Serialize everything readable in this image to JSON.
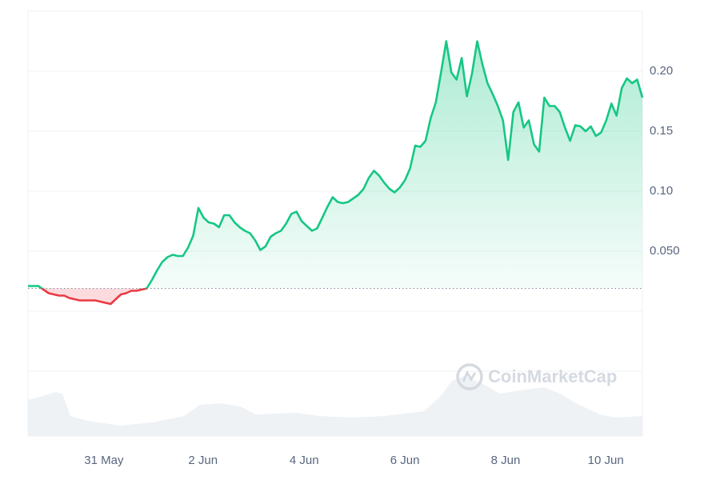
{
  "chart_data": {
    "type": "line",
    "watermark": "CoinMarketCap",
    "x": [
      0,
      1,
      2,
      3,
      4,
      5,
      6,
      7,
      8,
      9,
      10,
      11,
      12,
      13,
      14,
      15,
      16,
      17,
      18,
      19,
      20,
      21,
      22,
      23,
      24,
      25,
      26,
      27,
      28,
      29,
      30,
      31,
      32,
      33,
      34,
      35,
      36,
      37,
      38,
      39,
      40,
      41,
      42,
      43,
      44,
      45,
      46,
      47,
      48,
      49,
      50,
      51,
      52,
      53,
      54,
      55,
      56,
      57,
      58,
      59,
      60,
      61,
      62,
      63,
      64,
      65,
      66,
      67,
      68,
      69,
      70,
      71,
      72,
      73,
      74,
      75,
      76,
      77,
      78,
      79,
      80,
      81,
      82,
      83,
      84,
      85,
      86,
      87,
      88,
      89,
      90,
      91,
      92,
      93,
      94,
      95,
      96,
      97,
      98,
      99,
      100,
      101,
      102,
      103,
      104,
      105,
      106,
      107,
      108,
      109,
      110,
      111,
      112,
      113,
      114,
      115,
      116,
      117,
      118,
      119
    ],
    "series": [
      {
        "color": "#16c784",
        "below_color": "#ea3943",
        "values": [
          0.021,
          0.021,
          0.021,
          0.018,
          0.015,
          0.014,
          0.013,
          0.013,
          0.011,
          0.01,
          0.009,
          0.009,
          0.009,
          0.009,
          0.008,
          0.007,
          0.006,
          0.01,
          0.014,
          0.015,
          0.017,
          0.017,
          0.018,
          0.019,
          0.026,
          0.034,
          0.041,
          0.045,
          0.047,
          0.046,
          0.046,
          0.053,
          0.063,
          0.086,
          0.078,
          0.074,
          0.073,
          0.07,
          0.08,
          0.08,
          0.074,
          0.07,
          0.067,
          0.065,
          0.059,
          0.051,
          0.054,
          0.062,
          0.065,
          0.067,
          0.073,
          0.081,
          0.083,
          0.075,
          0.071,
          0.067,
          0.069,
          0.078,
          0.087,
          0.095,
          0.091,
          0.09,
          0.091,
          0.094,
          0.097,
          0.102,
          0.111,
          0.117,
          0.113,
          0.107,
          0.102,
          0.099,
          0.103,
          0.109,
          0.119,
          0.138,
          0.137,
          0.142,
          0.161,
          0.174,
          0.199,
          0.225,
          0.199,
          0.193,
          0.211,
          0.179,
          0.198,
          0.225,
          0.206,
          0.19,
          0.181,
          0.171,
          0.159,
          0.126,
          0.166,
          0.174,
          0.153,
          0.159,
          0.139,
          0.133,
          0.178,
          0.171,
          0.171,
          0.166,
          0.153,
          0.142,
          0.155,
          0.154,
          0.15,
          0.154,
          0.146,
          0.149,
          0.159,
          0.173,
          0.163,
          0.186,
          0.194,
          0.19,
          0.193,
          0.178
        ]
      }
    ],
    "baseline": 0.019,
    "xlim": [
      0,
      119
    ],
    "xticks": [
      {
        "value": 14.7,
        "label": "31 May"
      },
      {
        "value": 33.9,
        "label": "2 Jun"
      },
      {
        "value": 53.5,
        "label": "4 Jun"
      },
      {
        "value": 73.0,
        "label": "6 Jun"
      },
      {
        "value": 92.5,
        "label": "8 Jun"
      },
      {
        "value": 111.9,
        "label": "10 Jun"
      }
    ],
    "ylim": [
      -0.1,
      0.25
    ],
    "yticks": [
      {
        "value": 0.05,
        "label": "0.050"
      },
      {
        "value": 0.1,
        "label": "0.10"
      },
      {
        "value": 0.15,
        "label": "0.15"
      },
      {
        "value": 0.2,
        "label": "0.20"
      }
    ],
    "grid": true
  }
}
